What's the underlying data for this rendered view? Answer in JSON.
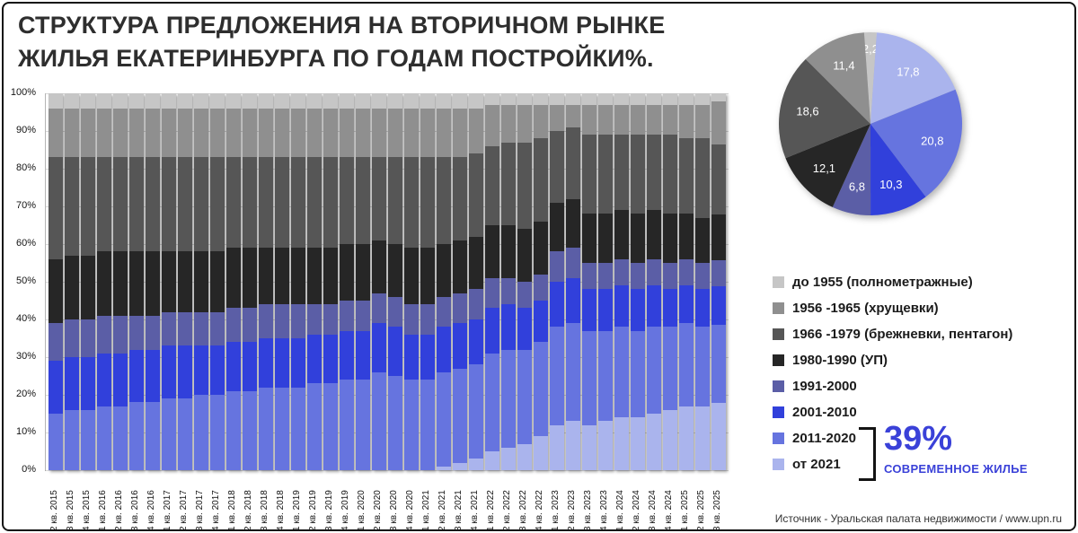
{
  "title": {
    "line1": "СТРУКТУРА ПРЕДЛОЖЕНИЯ НА ВТОРИЧНОМ РЫНКЕ",
    "line2": "ЖИЛЬЯ ЕКАТЕРИНБУРГА ПО ГОДАМ ПОСТРОЙКИ%."
  },
  "axis": {
    "yticks": [
      "100%",
      "90%",
      "80%",
      "70%",
      "60%",
      "50%",
      "40%",
      "30%",
      "20%",
      "10%",
      "0%"
    ]
  },
  "chart_data": [
    {
      "type": "bar",
      "stacked": true,
      "units": "percent",
      "ylim": [
        0,
        100
      ],
      "grid": true,
      "categories": [
        "2 кв. 2015",
        "3 кв. 2015",
        "4 кв. 2015",
        "1 кв. 2016",
        "2 кв. 2016",
        "3 кв. 2016",
        "4 кв. 2016",
        "1 кв. 2017",
        "2 кв. 2017",
        "3 кв. 2017",
        "4 кв. 2017",
        "1 кв. 2018",
        "2 кв. 2018",
        "3 кв. 2018",
        "4 кв. 2018",
        "1 кв. 2019",
        "2 кв. 2019",
        "3 кв. 2019",
        "4 кв. 2019",
        "1 кв. 2020",
        "2 кв. 2020",
        "3 кв. 2020",
        "4 кв. 2020",
        "1 кв. 2021",
        "2 кв. 2021",
        "3 кв. 2021",
        "4 кв. 2021",
        "1 кв. 2022",
        "2 кв. 2022",
        "3 кв. 2022",
        "4 кв. 2022",
        "1 кв. 2023",
        "2 кв. 2023",
        "3 кв. 2023",
        "4 кв. 2023",
        "1 кв. 2024",
        "2 кв. 2024",
        "3 кв. 2024",
        "4 кв. 2024",
        "1 кв. 2025",
        "2 кв. 2025",
        "3 кв. 2025"
      ],
      "series": [
        {
          "name": "от 2021",
          "color": "#aab4ed",
          "values": [
            0,
            0,
            0,
            0,
            0,
            0,
            0,
            0,
            0,
            0,
            0,
            0,
            0,
            0,
            0,
            0,
            0,
            0,
            0,
            0,
            0,
            0,
            0,
            0,
            1,
            2,
            3,
            5,
            6,
            7,
            9,
            12,
            13,
            12,
            13,
            14,
            14,
            15,
            16,
            17,
            17,
            17.8
          ]
        },
        {
          "name": "2011-2020",
          "color": "#6674df",
          "values": [
            15,
            16,
            16,
            17,
            17,
            18,
            18,
            19,
            19,
            20,
            20,
            21,
            21,
            22,
            22,
            22,
            23,
            23,
            24,
            24,
            26,
            25,
            24,
            24,
            25,
            25,
            25,
            26,
            26,
            25,
            25,
            26,
            26,
            25,
            24,
            24,
            23,
            23,
            22,
            22,
            21,
            20.8
          ]
        },
        {
          "name": "2001-2010",
          "color": "#3140db",
          "values": [
            14,
            14,
            14,
            14,
            14,
            14,
            14,
            14,
            14,
            13,
            13,
            13,
            13,
            13,
            13,
            13,
            13,
            13,
            13,
            13,
            13,
            13,
            12,
            12,
            12,
            12,
            12,
            12,
            12,
            11,
            11,
            12,
            12,
            11,
            11,
            11,
            11,
            11,
            10,
            10,
            10,
            10.3
          ]
        },
        {
          "name": "1991-2000",
          "color": "#5b5ea6",
          "values": [
            10,
            10,
            10,
            10,
            10,
            9,
            9,
            9,
            9,
            9,
            9,
            9,
            9,
            9,
            9,
            9,
            8,
            8,
            8,
            8,
            8,
            8,
            8,
            8,
            8,
            8,
            8,
            8,
            7,
            7,
            7,
            8,
            8,
            7,
            7,
            7,
            7,
            7,
            7,
            7,
            7,
            6.8
          ]
        },
        {
          "name": "1980-1990 (УП)",
          "color": "#262626",
          "values": [
            17,
            17,
            17,
            17,
            17,
            17,
            17,
            16,
            16,
            16,
            16,
            16,
            16,
            15,
            15,
            15,
            15,
            15,
            15,
            15,
            14,
            14,
            15,
            15,
            14,
            14,
            14,
            14,
            14,
            14,
            14,
            13,
            13,
            13,
            13,
            13,
            13,
            13,
            13,
            12,
            12,
            12.1
          ]
        },
        {
          "name": "1966 -1979 (брежневки, пентагон)",
          "color": "#565656",
          "values": [
            27,
            26,
            26,
            25,
            25,
            25,
            25,
            25,
            25,
            25,
            25,
            24,
            24,
            24,
            24,
            24,
            24,
            24,
            23,
            23,
            22,
            23,
            24,
            24,
            23,
            22,
            22,
            21,
            22,
            23,
            22,
            19,
            19,
            21,
            21,
            20,
            21,
            20,
            21,
            20,
            21,
            18.6
          ]
        },
        {
          "name": "1956 -1965 (хрущевки)",
          "color": "#8f8f8f",
          "values": [
            13,
            13,
            13,
            13,
            13,
            13,
            13,
            13,
            13,
            13,
            13,
            13,
            13,
            13,
            13,
            13,
            13,
            13,
            13,
            13,
            13,
            13,
            13,
            13,
            13,
            13,
            12,
            11,
            10,
            10,
            9,
            7,
            6,
            8,
            8,
            8,
            8,
            8,
            8,
            9,
            9,
            11.4
          ]
        },
        {
          "name": "до 1955 (полнометражные)",
          "color": "#c6c6c6",
          "values": [
            4,
            4,
            4,
            4,
            4,
            4,
            4,
            4,
            4,
            4,
            4,
            4,
            4,
            4,
            4,
            4,
            4,
            4,
            4,
            4,
            4,
            4,
            4,
            4,
            4,
            4,
            4,
            3,
            3,
            3,
            3,
            3,
            3,
            3,
            3,
            3,
            3,
            3,
            3,
            3,
            3,
            2.2
          ]
        }
      ]
    },
    {
      "type": "pie",
      "direction": "clockwise",
      "start_angle_deg": -94,
      "labels": [
        "до 1955 (полнометражные)",
        "от 2021",
        "2011-2020",
        "2001-2010",
        "1991-2000",
        "1980-1990 (УП)",
        "1966 -1979 (брежневки, пентагон)",
        "1956 -1965 (хрущевки)"
      ],
      "values": [
        2.2,
        17.8,
        20.8,
        10.3,
        6.8,
        12.1,
        18.6,
        11.4
      ],
      "display_values": [
        "2,2",
        "17,8",
        "20,8",
        "10,3",
        "6,8",
        "12,1",
        "18,6",
        "11,4"
      ],
      "colors": [
        "#c6c6c6",
        "#aab4ed",
        "#6674df",
        "#3140db",
        "#5b5ea6",
        "#262626",
        "#565656",
        "#8f8f8f"
      ]
    }
  ],
  "legend": {
    "items": [
      {
        "label": "до 1955 (полнометражные)",
        "color": "#c6c6c6"
      },
      {
        "label": "1956 -1965 (хрущевки)",
        "color": "#8f8f8f"
      },
      {
        "label": "1966 -1979 (брежневки, пентагон)",
        "color": "#565656"
      },
      {
        "label": "1980-1990 (УП)",
        "color": "#262626"
      },
      {
        "label": "1991-2000",
        "color": "#5b5ea6"
      },
      {
        "label": "2001-2010",
        "color": "#3140db"
      },
      {
        "label": "2011-2020",
        "color": "#6674df"
      },
      {
        "label": "от 2021",
        "color": "#aab4ed"
      }
    ]
  },
  "annotation": {
    "value": "39%",
    "label": "СОВРЕМЕННОЕ ЖИЛЬЕ",
    "color": "#3a41d8"
  },
  "source": "Источник - Уральская палата недвижимости / www.upn.ru"
}
